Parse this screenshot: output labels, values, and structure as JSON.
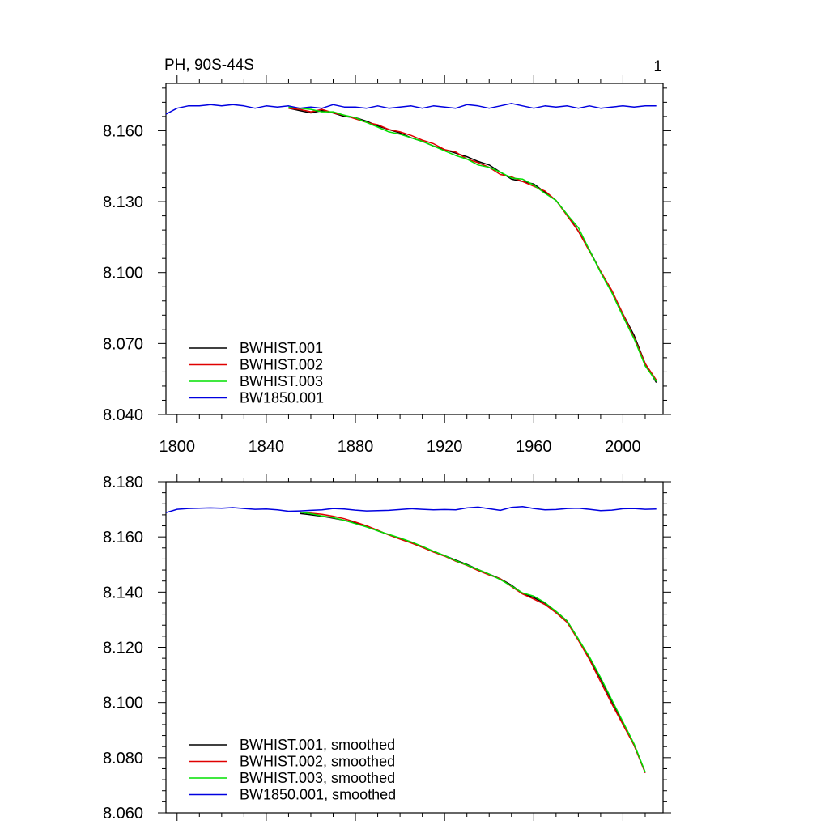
{
  "chart_data": [
    {
      "type": "line",
      "title": "PH, 90S-44S",
      "panel_label": "1",
      "xlabel": "",
      "ylabel": "",
      "xlim": [
        1795,
        2018
      ],
      "ylim": [
        8.04,
        8.18
      ],
      "xticks": [
        1800,
        1840,
        1880,
        1920,
        1960,
        2000
      ],
      "xtick_labels": [
        "1800",
        "1840",
        "1880",
        "1920",
        "1960",
        "2000"
      ],
      "yticks": [
        8.04,
        8.07,
        8.1,
        8.13,
        8.16
      ],
      "ytick_labels": [
        "8.040",
        "8.070",
        "8.100",
        "8.130",
        "8.160"
      ],
      "legend_position": "bottom-left",
      "series": [
        {
          "name": "BWHIST.001",
          "color": "#000000",
          "x": [
            1850,
            1855,
            1860,
            1865,
            1870,
            1875,
            1880,
            1885,
            1890,
            1895,
            1900,
            1905,
            1910,
            1915,
            1920,
            1925,
            1930,
            1935,
            1940,
            1945,
            1950,
            1955,
            1960,
            1965,
            1970,
            1975,
            1980,
            1985,
            1990,
            1995,
            2000,
            2005,
            2010,
            2015
          ],
          "values": [
            8.1695,
            8.1685,
            8.1675,
            8.1685,
            8.1675,
            8.166,
            8.1655,
            8.164,
            8.162,
            8.1605,
            8.159,
            8.157,
            8.1555,
            8.1535,
            8.152,
            8.1505,
            8.149,
            8.147,
            8.1455,
            8.1425,
            8.1395,
            8.1385,
            8.1375,
            8.134,
            8.1305,
            8.1245,
            8.1175,
            8.1095,
            8.1005,
            8.092,
            8.0825,
            8.0735,
            8.0615,
            8.0535
          ]
        },
        {
          "name": "BWHIST.002",
          "color": "#e00000",
          "x": [
            1850,
            1855,
            1860,
            1865,
            1870,
            1875,
            1880,
            1885,
            1890,
            1895,
            1900,
            1905,
            1910,
            1915,
            1920,
            1925,
            1930,
            1935,
            1940,
            1945,
            1950,
            1955,
            1960,
            1965,
            1970,
            1975,
            1980,
            1985,
            1990,
            1995,
            2000,
            2005,
            2010,
            2015
          ],
          "values": [
            8.1695,
            8.169,
            8.168,
            8.169,
            8.1675,
            8.1665,
            8.165,
            8.1635,
            8.1625,
            8.1605,
            8.1595,
            8.158,
            8.156,
            8.1545,
            8.152,
            8.151,
            8.148,
            8.1465,
            8.1445,
            8.1415,
            8.1405,
            8.1385,
            8.1365,
            8.1345,
            8.1305,
            8.124,
            8.1175,
            8.109,
            8.1005,
            8.0925,
            8.0825,
            8.0725,
            8.0615,
            8.0545
          ]
        },
        {
          "name": "BWHIST.003",
          "color": "#00e000",
          "x": [
            1850,
            1855,
            1860,
            1865,
            1870,
            1875,
            1880,
            1885,
            1890,
            1895,
            1900,
            1905,
            1910,
            1915,
            1920,
            1925,
            1930,
            1935,
            1940,
            1945,
            1950,
            1955,
            1960,
            1965,
            1970,
            1975,
            1980,
            1985,
            1990,
            1995,
            2000,
            2005,
            2010,
            2015
          ],
          "values": [
            8.17,
            8.1695,
            8.169,
            8.168,
            8.168,
            8.1665,
            8.1655,
            8.1635,
            8.1615,
            8.1595,
            8.1585,
            8.157,
            8.1555,
            8.1535,
            8.1515,
            8.1495,
            8.148,
            8.1455,
            8.1445,
            8.1425,
            8.14,
            8.1395,
            8.137,
            8.1335,
            8.1305,
            8.1245,
            8.119,
            8.1095,
            8.1,
            8.0915,
            8.0815,
            8.072,
            8.0605,
            8.054
          ]
        },
        {
          "name": "BW1850.001",
          "color": "#0000e0",
          "x": [
            1795,
            1800,
            1805,
            1810,
            1815,
            1820,
            1825,
            1830,
            1835,
            1840,
            1845,
            1850,
            1855,
            1860,
            1865,
            1870,
            1875,
            1880,
            1885,
            1890,
            1895,
            1900,
            1905,
            1910,
            1915,
            1920,
            1925,
            1930,
            1935,
            1940,
            1945,
            1950,
            1955,
            1960,
            1965,
            1970,
            1975,
            1980,
            1985,
            1990,
            1995,
            2000,
            2005,
            2010,
            2015
          ],
          "values": [
            8.167,
            8.1695,
            8.1705,
            8.1705,
            8.171,
            8.1705,
            8.171,
            8.1705,
            8.1695,
            8.1705,
            8.17,
            8.1705,
            8.1695,
            8.17,
            8.1695,
            8.171,
            8.17,
            8.17,
            8.1695,
            8.1705,
            8.1695,
            8.17,
            8.1705,
            8.1695,
            8.1705,
            8.17,
            8.1695,
            8.171,
            8.1705,
            8.1695,
            8.1705,
            8.1715,
            8.1705,
            8.1695,
            8.1705,
            8.17,
            8.1705,
            8.1695,
            8.1705,
            8.1695,
            8.17,
            8.1705,
            8.17,
            8.1705,
            8.1705
          ]
        }
      ]
    },
    {
      "type": "line",
      "title": "",
      "xlabel": "",
      "ylabel": "",
      "xlim": [
        1795,
        2018
      ],
      "ylim": [
        8.06,
        8.18
      ],
      "xticks": [
        1800,
        1840,
        1880,
        1920,
        1960,
        2000
      ],
      "xtick_labels": [],
      "yticks": [
        8.06,
        8.08,
        8.1,
        8.12,
        8.14,
        8.16,
        8.18
      ],
      "ytick_labels": [
        "8.060",
        "8.080",
        "8.100",
        "8.120",
        "8.140",
        "8.160",
        "8.180"
      ],
      "legend_position": "bottom-left",
      "series": [
        {
          "name": "BWHIST.001, smoothed",
          "color": "#000000",
          "x": [
            1855,
            1860,
            1865,
            1870,
            1875,
            1880,
            1885,
            1890,
            1895,
            1900,
            1905,
            1910,
            1915,
            1920,
            1925,
            1930,
            1935,
            1940,
            1945,
            1950,
            1955,
            1960,
            1965,
            1970,
            1975,
            1980,
            1985,
            1990,
            1995,
            2000,
            2005,
            2010
          ],
          "values": [
            8.1685,
            8.168,
            8.1675,
            8.1668,
            8.166,
            8.165,
            8.1638,
            8.1622,
            8.1608,
            8.1595,
            8.158,
            8.1565,
            8.1548,
            8.1532,
            8.1516,
            8.15,
            8.1482,
            8.1465,
            8.1448,
            8.1425,
            8.1395,
            8.138,
            8.136,
            8.133,
            8.1295,
            8.123,
            8.116,
            8.1085,
            8.1005,
            8.0925,
            8.0845,
            8.0745
          ]
        },
        {
          "name": "BWHIST.002, smoothed",
          "color": "#e00000",
          "x": [
            1855,
            1860,
            1865,
            1870,
            1875,
            1880,
            1885,
            1890,
            1895,
            1900,
            1905,
            1910,
            1915,
            1920,
            1925,
            1930,
            1935,
            1940,
            1945,
            1950,
            1955,
            1960,
            1965,
            1970,
            1975,
            1980,
            1985,
            1990,
            1995,
            2000,
            2005,
            2010
          ],
          "values": [
            8.169,
            8.1686,
            8.1682,
            8.1675,
            8.1666,
            8.1654,
            8.164,
            8.1624,
            8.1607,
            8.1592,
            8.1578,
            8.1562,
            8.1545,
            8.153,
            8.1512,
            8.1497,
            8.1478,
            8.1462,
            8.1448,
            8.142,
            8.1393,
            8.1375,
            8.1355,
            8.1325,
            8.129,
            8.1225,
            8.1155,
            8.1075,
            8.0995,
            8.092,
            8.0845,
            8.0745
          ]
        },
        {
          "name": "BWHIST.003, smoothed",
          "color": "#00e000",
          "x": [
            1855,
            1860,
            1865,
            1870,
            1875,
            1880,
            1885,
            1890,
            1895,
            1900,
            1905,
            1910,
            1915,
            1920,
            1925,
            1930,
            1935,
            1940,
            1945,
            1950,
            1955,
            1960,
            1965,
            1970,
            1975,
            1980,
            1985,
            1990,
            1995,
            2000,
            2005,
            2010
          ],
          "values": [
            8.169,
            8.1684,
            8.1676,
            8.167,
            8.166,
            8.1648,
            8.1636,
            8.1622,
            8.1609,
            8.1596,
            8.1582,
            8.1566,
            8.1548,
            8.1532,
            8.1514,
            8.1498,
            8.1482,
            8.1465,
            8.1445,
            8.1422,
            8.1397,
            8.1385,
            8.1362,
            8.133,
            8.1295,
            8.123,
            8.1165,
            8.109,
            8.101,
            8.093,
            8.085,
            8.0748
          ]
        },
        {
          "name": "BW1850.001, smoothed",
          "color": "#0000e0",
          "x": [
            1795,
            1800,
            1805,
            1810,
            1815,
            1820,
            1825,
            1830,
            1835,
            1840,
            1845,
            1850,
            1855,
            1860,
            1865,
            1870,
            1875,
            1880,
            1885,
            1890,
            1895,
            1900,
            1905,
            1910,
            1915,
            1920,
            1925,
            1930,
            1935,
            1940,
            1945,
            1950,
            1955,
            1960,
            1965,
            1970,
            1975,
            1980,
            1985,
            1990,
            1995,
            2000,
            2005,
            2010,
            2015
          ],
          "values": [
            8.1688,
            8.17,
            8.1703,
            8.1704,
            8.1705,
            8.1704,
            8.1706,
            8.1703,
            8.17,
            8.1701,
            8.1698,
            8.1693,
            8.1694,
            8.1696,
            8.1698,
            8.1703,
            8.1701,
            8.1697,
            8.1694,
            8.1695,
            8.1696,
            8.1699,
            8.1702,
            8.17,
            8.1698,
            8.1699,
            8.1698,
            8.1705,
            8.1708,
            8.1702,
            8.1696,
            8.1707,
            8.171,
            8.1703,
            8.1698,
            8.1699,
            8.1703,
            8.1704,
            8.17,
            8.1695,
            8.1697,
            8.1702,
            8.1703,
            8.17,
            8.1701
          ]
        }
      ]
    }
  ]
}
